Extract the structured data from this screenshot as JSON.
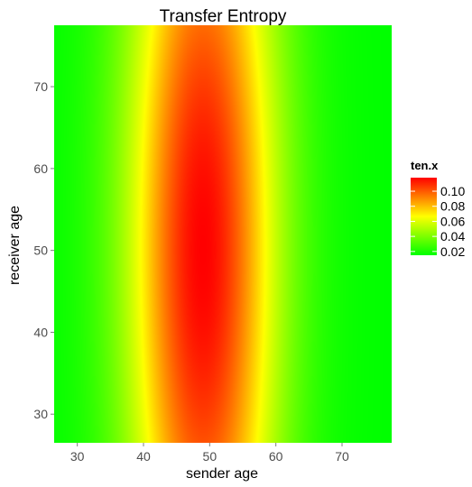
{
  "chart_data": {
    "type": "heatmap",
    "title": "Transfer Entropy",
    "xlabel": "sender age",
    "ylabel": "receiver age",
    "xlim": [
      26.5,
      77.5
    ],
    "ylim": [
      26.5,
      77.5
    ],
    "x_ticks": [
      30,
      40,
      50,
      60,
      70
    ],
    "y_ticks": [
      30,
      40,
      50,
      60,
      70
    ],
    "x_tick_labels": [
      "30",
      "40",
      "50",
      "60",
      "70"
    ],
    "y_tick_labels": [
      "30",
      "40",
      "50",
      "60",
      "70"
    ],
    "value_name": "ten.x",
    "value_range": [
      0.015,
      0.118
    ],
    "legend_ticks": [
      0.02,
      0.04,
      0.06,
      0.08,
      0.1
    ],
    "legend_tick_labels": [
      "0.02",
      "0.04",
      "0.06",
      "0.08",
      "0.10"
    ],
    "legend_position": "right",
    "colors": {
      "low": "#00ff00",
      "high": "#ff0000"
    },
    "grid": false,
    "surface": {
      "peak": {
        "sender_age": 49,
        "receiver_age": 50,
        "value": 0.118
      },
      "baseline": 0.015,
      "sender_age_spread": 8,
      "receiver_age_spread": 40
    }
  }
}
